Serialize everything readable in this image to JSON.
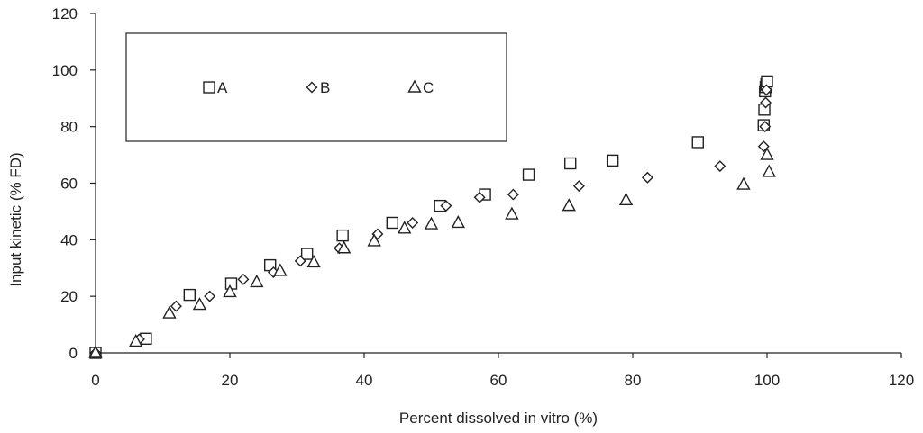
{
  "chart_data": {
    "type": "scatter",
    "xlabel": "Percent dissolved in vitro (%)",
    "ylabel": "Input kinetic (% FD)",
    "xlim": [
      0,
      120
    ],
    "ylim": [
      0,
      120
    ],
    "xticks": [
      0,
      20,
      40,
      60,
      80,
      100,
      120
    ],
    "yticks": [
      0,
      20,
      40,
      60,
      80,
      100,
      120
    ],
    "grid": false,
    "legend_position": "top-left",
    "series": [
      {
        "name": "A",
        "marker": "square",
        "x": [
          0,
          7.5,
          14,
          20.2,
          26,
          31.5,
          36.8,
          44.2,
          51.3,
          58,
          64.5,
          70.7,
          77,
          89.7,
          99.5,
          99.6,
          99.7,
          99.8,
          99.9,
          100
        ],
        "y": [
          0,
          5,
          20.5,
          24.5,
          31,
          35,
          41.5,
          46,
          52,
          56,
          63,
          67,
          68,
          74.5,
          80.5,
          86,
          92.5,
          94,
          95,
          96
        ]
      },
      {
        "name": "B",
        "marker": "diamond",
        "x": [
          0,
          6.5,
          12,
          17,
          22,
          26.5,
          30.5,
          36.3,
          42,
          47.2,
          52.2,
          57.2,
          62.2,
          72,
          82.2,
          93,
          99.5,
          99.7,
          99.8,
          99.9
        ],
        "y": [
          0,
          4.8,
          16.5,
          20,
          26,
          28.5,
          32.5,
          37,
          42,
          46,
          52,
          55,
          56,
          59,
          62,
          66,
          73,
          80,
          88.5,
          93
        ]
      },
      {
        "name": "C",
        "marker": "triangle",
        "x": [
          0,
          6,
          11,
          15.5,
          20,
          24,
          27.5,
          32.5,
          37,
          41.5,
          46,
          50,
          54,
          62,
          70.5,
          79,
          96.5,
          100,
          100.3
        ],
        "y": [
          0,
          4,
          14,
          17,
          21.5,
          25,
          29,
          32,
          37,
          39.5,
          44,
          45.5,
          46,
          49,
          52,
          54,
          59.5,
          70,
          64
        ]
      }
    ]
  }
}
